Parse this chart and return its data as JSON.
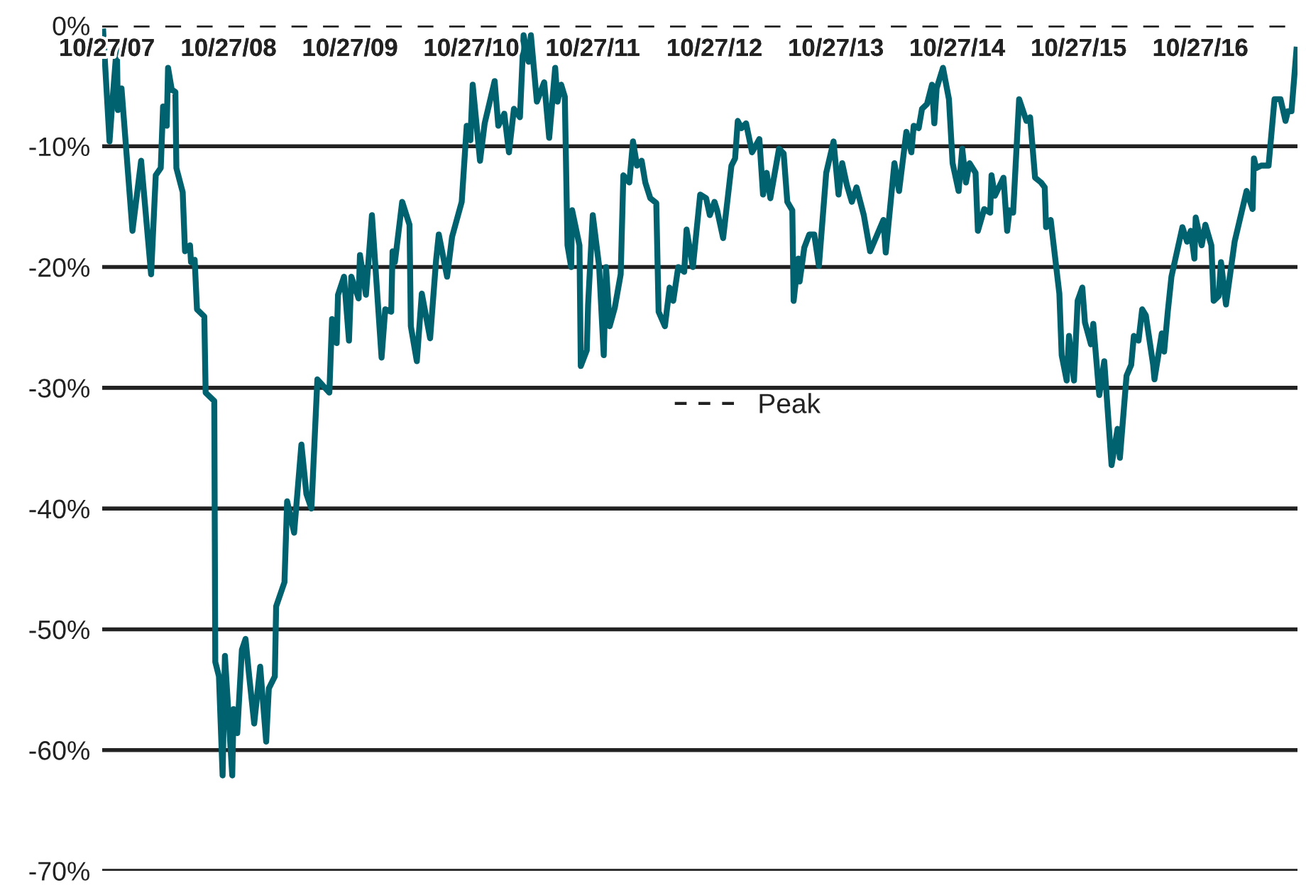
{
  "chart_data": {
    "type": "line",
    "x": [
      "2007-10-16",
      "2007-11-04",
      "2007-11-11",
      "2007-11-26",
      "2007-11-29",
      "2007-12-10",
      "2008-01-12",
      "2008-02-07",
      "2008-03-08",
      "2008-03-22",
      "2008-04-06",
      "2008-04-13",
      "2008-04-24",
      "2008-04-28",
      "2008-05-09",
      "2008-05-20",
      "2008-05-23",
      "2008-06-11",
      "2008-06-18",
      "2008-07-03",
      "2008-07-06",
      "2008-07-17",
      "2008-07-24",
      "2008-08-15",
      "2008-08-19",
      "2008-09-14",
      "2008-09-17",
      "2008-09-28",
      "2008-10-09",
      "2008-10-16",
      "2008-11-07",
      "2008-11-11",
      "2008-11-22",
      "2008-12-06",
      "2008-12-17",
      "2008-12-28",
      "2009-01-12",
      "2009-01-30",
      "2009-02-17",
      "2009-02-25",
      "2009-03-15",
      "2009-03-19",
      "2009-04-13",
      "2009-04-21",
      "2009-05-12",
      "2009-06-03",
      "2009-06-18",
      "2009-07-03",
      "2009-07-21",
      "2009-08-26",
      "2009-09-03",
      "2009-09-17",
      "2009-09-21",
      "2009-10-09",
      "2009-10-24",
      "2009-10-31",
      "2009-11-22",
      "2009-11-26",
      "2009-12-14",
      "2010-01-01",
      "2010-01-30",
      "2010-02-10",
      "2010-02-28",
      "2010-03-04",
      "2010-03-11",
      "2010-04-02",
      "2010-04-24",
      "2010-04-28",
      "2010-05-16",
      "2010-05-31",
      "2010-06-25",
      "2010-07-13",
      "2010-07-21",
      "2010-08-15",
      "2010-08-30",
      "2010-09-28",
      "2010-10-13",
      "2010-10-24",
      "2010-10-31",
      "2010-11-22",
      "2010-12-06",
      "2011-01-05",
      "2011-01-16",
      "2011-02-03",
      "2011-02-17",
      "2011-03-04",
      "2011-03-22",
      "2011-04-02",
      "2011-04-17",
      "2011-04-24",
      "2011-05-12",
      "2011-06-03",
      "2011-06-18",
      "2011-07-06",
      "2011-07-13",
      "2011-07-24",
      "2011-08-04",
      "2011-08-12",
      "2011-08-23",
      "2011-08-26",
      "2011-09-17",
      "2011-09-21",
      "2011-10-09",
      "2011-10-13",
      "2011-10-27",
      "2011-11-15",
      "2011-11-29",
      "2011-12-06",
      "2011-12-17",
      "2012-01-01",
      "2012-01-19",
      "2012-01-27",
      "2012-02-14",
      "2012-02-25",
      "2012-03-08",
      "2012-03-22",
      "2012-04-02",
      "2012-04-17",
      "2012-05-05",
      "2012-05-12",
      "2012-05-31",
      "2012-06-14",
      "2012-06-25",
      "2012-07-10",
      "2012-07-28",
      "2012-08-04",
      "2012-08-23",
      "2012-09-14",
      "2012-10-02",
      "2012-10-13",
      "2012-10-27",
      "2012-11-04",
      "2012-11-22",
      "2012-12-17",
      "2012-12-28",
      "2013-01-05",
      "2013-01-16",
      "2013-01-30",
      "2013-02-17",
      "2013-03-11",
      "2013-03-22",
      "2013-04-02",
      "2013-04-13",
      "2013-05-09",
      "2013-05-23",
      "2013-06-03",
      "2013-06-18",
      "2013-06-22",
      "2013-07-06",
      "2013-07-10",
      "2013-07-24",
      "2013-08-08",
      "2013-08-23",
      "2013-09-06",
      "2013-09-28",
      "2013-10-20",
      "2013-11-04",
      "2013-11-15",
      "2013-11-29",
      "2013-12-14",
      "2013-12-28",
      "2014-01-19",
      "2014-02-07",
      "2014-03-19",
      "2014-03-26",
      "2014-04-21",
      "2014-05-05",
      "2014-05-27",
      "2014-06-11",
      "2014-06-18",
      "2014-07-03",
      "2014-07-13",
      "2014-07-28",
      "2014-08-12",
      "2014-08-19",
      "2014-08-26",
      "2014-09-14",
      "2014-10-02",
      "2014-10-13",
      "2014-10-31",
      "2014-11-11",
      "2014-11-22",
      "2014-12-03",
      "2014-12-21",
      "2014-12-28",
      "2015-01-16",
      "2015-02-03",
      "2015-02-07",
      "2015-02-17",
      "2015-03-15",
      "2015-03-26",
      "2015-04-02",
      "2015-04-13",
      "2015-05-01",
      "2015-05-23",
      "2015-06-03",
      "2015-06-18",
      "2015-07-06",
      "2015-07-17",
      "2015-07-21",
      "2015-08-04",
      "2015-08-30",
      "2015-09-06",
      "2015-09-21",
      "2015-09-28",
      "2015-10-13",
      "2015-10-24",
      "2015-11-07",
      "2015-11-15",
      "2015-12-03",
      "2015-12-10",
      "2015-12-28",
      "2016-01-12",
      "2016-02-03",
      "2016-02-21",
      "2016-02-28",
      "2016-03-19",
      "2016-04-02",
      "2016-04-10",
      "2016-04-24",
      "2016-05-05",
      "2016-05-16",
      "2016-06-07",
      "2016-06-11",
      "2016-07-03",
      "2016-07-10",
      "2016-07-21",
      "2016-08-01",
      "2016-09-03",
      "2016-09-17",
      "2016-09-28",
      "2016-10-09",
      "2016-10-13",
      "2016-10-31",
      "2016-11-11",
      "2016-11-29",
      "2016-12-06",
      "2016-12-21",
      "2016-12-28",
      "2017-01-12",
      "2017-02-07",
      "2017-03-15",
      "2017-04-02",
      "2017-04-06",
      "2017-04-13",
      "2017-04-28",
      "2017-05-20",
      "2017-06-07",
      "2017-06-25",
      "2017-07-10",
      "2017-07-17",
      "2017-07-28",
      "2017-08-12"
    ],
    "series": [
      {
        "color": "#00626f",
        "values": [
          -0.5,
          -9.6,
          -6.9,
          -1.6,
          -7,
          -5.2,
          -17,
          -11.2,
          -20.6,
          -12.4,
          -11.8,
          -6.7,
          -8.3,
          -3.5,
          -5.3,
          -5.5,
          -11.8,
          -13.8,
          -18.7,
          -18.2,
          -19.6,
          -19.4,
          -23.5,
          -24.1,
          -30.4,
          -31.1,
          -52.7,
          -53.9,
          -62.1,
          -52.2,
          -62.1,
          -56.6,
          -58.6,
          -51.7,
          -50.8,
          -53.9,
          -57.8,
          -53.1,
          -59.3,
          -54.9,
          -53.9,
          -48.1,
          -46.1,
          -39.4,
          -42,
          -34.7,
          -38.8,
          -40,
          -29.3,
          -30.4,
          -24.3,
          -26.3,
          -22.3,
          -20.8,
          -26.1,
          -20.8,
          -22.6,
          -19,
          -22.3,
          -15.7,
          -27.5,
          -23.5,
          -23.7,
          -18.7,
          -19.6,
          -14.6,
          -16.5,
          -24.9,
          -27.8,
          -22.2,
          -25.9,
          -19.4,
          -17.3,
          -20.8,
          -17.5,
          -14.6,
          -8.3,
          -9.5,
          -4.9,
          -11.2,
          -8.1,
          -4.6,
          -8.3,
          -7.3,
          -10.5,
          -6.9,
          -7.6,
          -0.8,
          -3,
          -0.8,
          -6.3,
          -4.7,
          -9.3,
          -3.5,
          -6.3,
          -4.9,
          -5.9,
          -18.2,
          -20,
          -15.3,
          -18.2,
          -28.2,
          -26.9,
          -23.1,
          -15.7,
          -19.9,
          -27.3,
          -20,
          -24.9,
          -23.4,
          -20.6,
          -12.4,
          -13,
          -9.6,
          -11.6,
          -11.2,
          -13,
          -14.3,
          -14.7,
          -23.7,
          -24.9,
          -21.7,
          -22.8,
          -20,
          -20.4,
          -16.9,
          -20,
          -14,
          -14.3,
          -15.7,
          -14.6,
          -15.3,
          -17.6,
          -11.6,
          -11,
          -7.9,
          -8.5,
          -8.1,
          -10.5,
          -9.4,
          -14,
          -12.2,
          -14.3,
          -10.2,
          -10.6,
          -14.6,
          -15.3,
          -22.8,
          -19.3,
          -21.2,
          -18.4,
          -17.3,
          -17.3,
          -19.9,
          -12.2,
          -9.6,
          -14,
          -11.4,
          -13.2,
          -14.6,
          -13.4,
          -15.7,
          -18.7,
          -16.1,
          -18.8,
          -11.4,
          -13.7,
          -8.8,
          -10.5,
          -8.3,
          -8.5,
          -6.9,
          -6.5,
          -4.9,
          -8.1,
          -5.2,
          -3.5,
          -6.1,
          -11.4,
          -13.7,
          -10.2,
          -13,
          -11.4,
          -12.2,
          -17,
          -15.2,
          -15.5,
          -12.4,
          -14.1,
          -12.6,
          -17,
          -15.3,
          -15.5,
          -6.1,
          -7.9,
          -7.6,
          -12.6,
          -13,
          -13.4,
          -16.7,
          -16.1,
          -22.2,
          -27.3,
          -29.4,
          -25.7,
          -29.4,
          -22.8,
          -21.7,
          -24.6,
          -26.4,
          -24.7,
          -30.6,
          -27.8,
          -36.4,
          -33.4,
          -35.8,
          -29,
          -28.1,
          -25.7,
          -26.1,
          -23.5,
          -24,
          -28.1,
          -29.3,
          -25.5,
          -27,
          -23.7,
          -20.8,
          -16.7,
          -17.9,
          -17,
          -19.3,
          -15.9,
          -18.2,
          -16.5,
          -18.2,
          -22.8,
          -22.4,
          -19.6,
          -23.1,
          -17.9,
          -13.7,
          -15.2,
          -11,
          -11.8,
          -11.6,
          -11.6,
          -6.1,
          -6.1,
          -7.9,
          -7.1,
          -7.1,
          -2
        ]
      }
    ],
    "xlim": [
      "2007-10-13",
      "2017-08-15"
    ],
    "xticks": [
      {
        "value": "2007-10-27",
        "label": "10/27/07"
      },
      {
        "value": "2008-10-27",
        "label": "10/27/08"
      },
      {
        "value": "2009-10-27",
        "label": "10/27/09"
      },
      {
        "value": "2010-10-27",
        "label": "10/27/10"
      },
      {
        "value": "2011-10-27",
        "label": "10/27/11"
      },
      {
        "value": "2012-10-27",
        "label": "10/27/12"
      },
      {
        "value": "2013-10-27",
        "label": "10/27/13"
      },
      {
        "value": "2014-10-27",
        "label": "10/27/14"
      },
      {
        "value": "2015-10-27",
        "label": "10/27/15"
      },
      {
        "value": "2016-10-27",
        "label": "10/27/16"
      }
    ],
    "ylim": [
      -70,
      0
    ],
    "yticks": [
      {
        "value": 0,
        "label": "0%"
      },
      {
        "value": -10,
        "label": "-10%"
      },
      {
        "value": -20,
        "label": "-20%"
      },
      {
        "value": -30,
        "label": "-30%"
      },
      {
        "value": -40,
        "label": "-40%"
      },
      {
        "value": -50,
        "label": "-50%"
      },
      {
        "value": -60,
        "label": "-60%"
      },
      {
        "value": -70,
        "label": "-70%"
      }
    ],
    "ref_lines": [
      {
        "axis": "y",
        "value": 0,
        "label": "Peak",
        "color": "#222222",
        "line_style": "dashed"
      }
    ],
    "grid": "y",
    "legend": "center",
    "marker": "none",
    "line_style": "solid"
  }
}
